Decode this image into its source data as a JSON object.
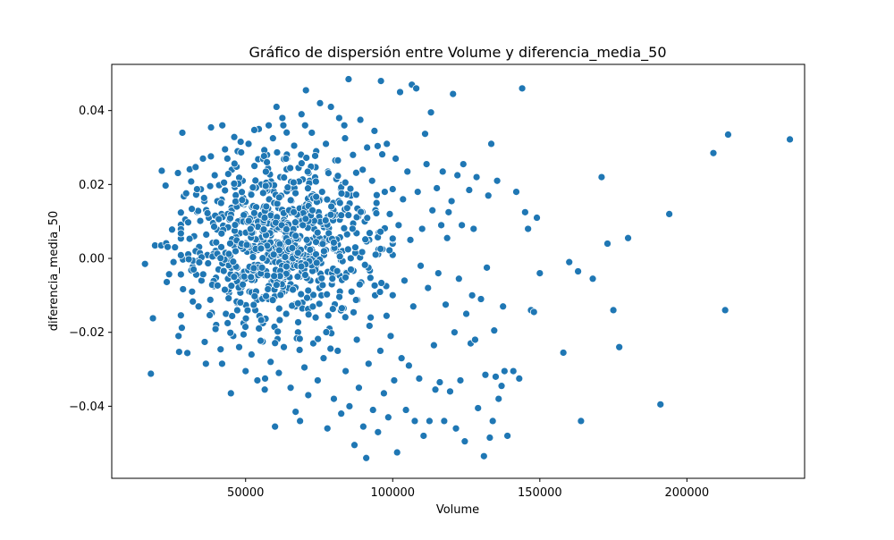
{
  "chart_data": {
    "type": "scatter",
    "title": "Gráfico de dispersión entre Volume y diferencia_media_50",
    "xlabel": "Volume",
    "ylabel": "diferencia_media_50",
    "xlim": [
      4500,
      240000
    ],
    "ylim": [
      -0.0595,
      0.0525
    ],
    "xticks": [
      50000,
      100000,
      150000,
      200000
    ],
    "xtick_labels": [
      "50000",
      "100000",
      "150000",
      "200000"
    ],
    "yticks": [
      -0.04,
      -0.02,
      0.0,
      0.02,
      0.04
    ],
    "ytick_labels": [
      "−0.04",
      "−0.02",
      "0.00",
      "0.02",
      "0.04"
    ],
    "grid": false,
    "legend": "none",
    "marker_color": "#1f77b4",
    "series": [
      {
        "points": [
          [
            15800,
            -0.0015
          ],
          [
            17800,
            -0.0312
          ],
          [
            18500,
            -0.0162
          ],
          [
            19200,
            0.0035
          ],
          [
            21300,
            0.0035
          ],
          [
            21500,
            0.0237
          ],
          [
            22800,
            0.0197
          ],
          [
            23000,
            0.0041
          ],
          [
            23200,
            -0.0064
          ],
          [
            23500,
            0.0031
          ],
          [
            24000,
            -0.0043
          ],
          [
            25000,
            0.0078
          ],
          [
            25500,
            -0.001
          ],
          [
            26000,
            0.003
          ],
          [
            27000,
            0.0231
          ],
          [
            27200,
            -0.021
          ],
          [
            27400,
            -0.0253
          ],
          [
            28000,
            0.0091
          ],
          [
            28500,
            0.034
          ],
          [
            28700,
            -0.0003
          ],
          [
            29000,
            0.0168
          ],
          [
            29500,
            0.0105
          ],
          [
            29800,
            0.0176
          ],
          [
            30200,
            -0.0256
          ],
          [
            30500,
            0.0011
          ],
          [
            31000,
            0.0241
          ],
          [
            31500,
            0.0208
          ],
          [
            31800,
            -0.009
          ],
          [
            32000,
            -0.0023
          ],
          [
            32500,
            0.006
          ],
          [
            33000,
            0.0247
          ],
          [
            33200,
            -0.0044
          ],
          [
            33500,
            0.0126
          ],
          [
            34000,
            -0.013
          ],
          [
            34200,
            0.0031
          ],
          [
            34800,
            0.0187
          ],
          [
            35000,
            -0.006
          ],
          [
            35500,
            0.027
          ],
          [
            36000,
            0.0155
          ],
          [
            36500,
            -0.0285
          ],
          [
            37000,
            0.0009
          ],
          [
            37500,
            0.011
          ],
          [
            38000,
            -0.0112
          ],
          [
            38200,
            0.0276
          ],
          [
            38800,
            0.0042
          ],
          [
            39200,
            -0.0075
          ],
          [
            39500,
            0.0225
          ],
          [
            40000,
            -0.018
          ],
          [
            40300,
            0.0078
          ],
          [
            40800,
            -0.003
          ],
          [
            41000,
            0.0198
          ],
          [
            41500,
            -0.0246
          ],
          [
            41800,
            0.012
          ],
          [
            42000,
            -0.0285
          ],
          [
            42500,
            0.0005
          ],
          [
            43000,
            0.0184
          ],
          [
            43300,
            -0.015
          ],
          [
            43800,
            0.027
          ],
          [
            44000,
            -0.0055
          ],
          [
            44500,
            0.0105
          ],
          [
            45000,
            -0.0365
          ],
          [
            45300,
            0.024
          ],
          [
            45800,
            -0.021
          ],
          [
            46000,
            0.0035
          ],
          [
            46500,
            0.015
          ],
          [
            47000,
            -0.012
          ],
          [
            47300,
            0.029
          ],
          [
            47800,
            -0.024
          ],
          [
            48000,
            0.0068
          ],
          [
            48500,
            -0.0045
          ],
          [
            49000,
            0.021
          ],
          [
            49300,
            -0.0175
          ],
          [
            49800,
            0.012
          ],
          [
            50000,
            -0.0305
          ],
          [
            50500,
            0.0018
          ],
          [
            51000,
            0.031
          ],
          [
            51300,
            -0.009
          ],
          [
            51800,
            0.0175
          ],
          [
            52000,
            -0.026
          ],
          [
            52500,
            0.006
          ],
          [
            53000,
            0.025
          ],
          [
            53300,
            -0.014
          ],
          [
            53800,
            0.0095
          ],
          [
            54000,
            -0.033
          ],
          [
            54500,
            0.035
          ],
          [
            55000,
            -0.002
          ],
          [
            55300,
            0.02
          ],
          [
            55800,
            -0.0225
          ],
          [
            56000,
            0.0135
          ],
          [
            56500,
            -0.0355
          ],
          [
            57000,
            0.004
          ],
          [
            57300,
            0.028
          ],
          [
            57800,
            -0.011
          ],
          [
            58000,
            0.016
          ],
          [
            58500,
            -0.028
          ],
          [
            59000,
            0.0075
          ],
          [
            59300,
            0.0325
          ],
          [
            59800,
            -0.0185
          ],
          [
            60000,
            -0.0455
          ],
          [
            60500,
            0.041
          ],
          [
            61000,
            0.001
          ],
          [
            61300,
            -0.031
          ],
          [
            61800,
            0.022
          ],
          [
            62000,
            -0.0065
          ],
          [
            62500,
            0.038
          ],
          [
            63000,
            -0.024
          ],
          [
            63300,
            0.0115
          ],
          [
            63800,
            -0.015
          ],
          [
            64000,
            0.027
          ],
          [
            64500,
            -0.008
          ],
          [
            65000,
            0.0055
          ],
          [
            65300,
            -0.035
          ],
          [
            65800,
            0.019
          ],
          [
            66000,
            -0.0025
          ],
          [
            66500,
            0.0305
          ],
          [
            67000,
            -0.0415
          ],
          [
            67300,
            0.009
          ],
          [
            67800,
            -0.02
          ],
          [
            68000,
            0.0245
          ],
          [
            68500,
            -0.044
          ],
          [
            69000,
            0.039
          ],
          [
            69300,
            -0.012
          ],
          [
            69800,
            0.014
          ],
          [
            70000,
            -0.0295
          ],
          [
            70500,
            0.0455
          ],
          [
            71000,
            0.003
          ],
          [
            71300,
            -0.037
          ],
          [
            71800,
            0.021
          ],
          [
            72000,
            -0.006
          ],
          [
            72500,
            0.034
          ],
          [
            73000,
            -0.023
          ],
          [
            73300,
            0.008
          ],
          [
            73800,
            -0.016
          ],
          [
            74000,
            0.029
          ],
          [
            74500,
            -0.033
          ],
          [
            75000,
            0.012
          ],
          [
            75300,
            0.042
          ],
          [
            75800,
            -0.01
          ],
          [
            76000,
            0.018
          ],
          [
            76500,
            -0.027
          ],
          [
            77000,
            0.0045
          ],
          [
            77300,
            0.031
          ],
          [
            77800,
            -0.046
          ],
          [
            78000,
            0.0235
          ],
          [
            78500,
            -0.019
          ],
          [
            79000,
            0.041
          ],
          [
            79300,
            -0.007
          ],
          [
            79800,
            0.015
          ],
          [
            80000,
            -0.038
          ],
          [
            80500,
            0.0265
          ],
          [
            81000,
            0.002
          ],
          [
            81300,
            -0.025
          ],
          [
            81800,
            0.038
          ],
          [
            82000,
            0.0105
          ],
          [
            82500,
            -0.042
          ],
          [
            83000,
            0.02
          ],
          [
            83300,
            -0.0135
          ],
          [
            83800,
            0.0325
          ],
          [
            84000,
            -0.0305
          ],
          [
            84500,
            0.0065
          ],
          [
            85000,
            0.0485
          ],
          [
            85300,
            -0.04
          ],
          [
            85800,
            0.017
          ],
          [
            86000,
            -0.009
          ],
          [
            86500,
            0.028
          ],
          [
            87000,
            -0.0505
          ],
          [
            87300,
            0.0015
          ],
          [
            87800,
            -0.022
          ],
          [
            88000,
            0.0135
          ],
          [
            88500,
            -0.035
          ],
          [
            89000,
            0.0375
          ],
          [
            89300,
            -0.0065
          ],
          [
            89800,
            0.024
          ],
          [
            90000,
            -0.0455
          ],
          [
            90500,
            0.01
          ],
          [
            91000,
            -0.054
          ],
          [
            91300,
            0.03
          ],
          [
            91800,
            -0.0285
          ],
          [
            92000,
            0.005
          ],
          [
            92500,
            -0.016
          ],
          [
            93000,
            0.021
          ],
          [
            93300,
            -0.041
          ],
          [
            93800,
            0.0345
          ],
          [
            94000,
            -0.01
          ],
          [
            94500,
            0.015
          ],
          [
            95000,
            -0.047
          ],
          [
            95300,
            0.007
          ],
          [
            95800,
            -0.025
          ],
          [
            96000,
            0.048
          ],
          [
            96500,
            0.0025
          ],
          [
            97000,
            -0.0365
          ],
          [
            97300,
            0.018
          ],
          [
            97800,
            -0.0075
          ],
          [
            98000,
            0.031
          ],
          [
            98500,
            -0.043
          ],
          [
            99000,
            0.012
          ],
          [
            99300,
            -0.021
          ],
          [
            100000,
            0.004
          ],
          [
            100500,
            -0.033
          ],
          [
            101000,
            0.027
          ],
          [
            101500,
            -0.0525
          ],
          [
            102000,
            0.009
          ],
          [
            102500,
            0.045
          ],
          [
            103000,
            -0.027
          ],
          [
            103500,
            0.016
          ],
          [
            104000,
            -0.006
          ],
          [
            104500,
            -0.041
          ],
          [
            105000,
            0.0235
          ],
          [
            105500,
            -0.029
          ],
          [
            106000,
            0.005
          ],
          [
            106500,
            0.047
          ],
          [
            107000,
            -0.013
          ],
          [
            107500,
            -0.044
          ],
          [
            108000,
            0.046
          ],
          [
            108500,
            0.018
          ],
          [
            109000,
            -0.0325
          ],
          [
            109500,
            -0.002
          ],
          [
            110000,
            0.008
          ],
          [
            110500,
            -0.048
          ],
          [
            111000,
            0.0337
          ],
          [
            111500,
            0.0255
          ],
          [
            112000,
            -0.008
          ],
          [
            112500,
            -0.044
          ],
          [
            113000,
            0.0395
          ],
          [
            113500,
            0.013
          ],
          [
            114000,
            -0.0235
          ],
          [
            114500,
            -0.0355
          ],
          [
            115000,
            0.019
          ],
          [
            115500,
            -0.004
          ],
          [
            116000,
            -0.0335
          ],
          [
            116500,
            0.009
          ],
          [
            117000,
            0.0235
          ],
          [
            117500,
            -0.044
          ],
          [
            118000,
            -0.0125
          ],
          [
            118500,
            0.0055
          ],
          [
            119000,
            0.0125
          ],
          [
            119500,
            -0.036
          ],
          [
            120000,
            0.0155
          ],
          [
            120500,
            0.0445
          ],
          [
            121000,
            -0.02
          ],
          [
            121500,
            -0.046
          ],
          [
            122000,
            0.0225
          ],
          [
            122500,
            -0.0055
          ],
          [
            123000,
            -0.033
          ],
          [
            123500,
            0.009
          ],
          [
            124000,
            0.0255
          ],
          [
            124500,
            -0.0495
          ],
          [
            125000,
            -0.015
          ],
          [
            126000,
            0.0185
          ],
          [
            126500,
            -0.023
          ],
          [
            127000,
            -0.01
          ],
          [
            127500,
            0.008
          ],
          [
            128000,
            -0.022
          ],
          [
            128500,
            0.022
          ],
          [
            129000,
            -0.0405
          ],
          [
            130000,
            -0.011
          ],
          [
            131000,
            -0.0535
          ],
          [
            131500,
            -0.0315
          ],
          [
            132000,
            -0.0025
          ],
          [
            132500,
            0.017
          ],
          [
            133000,
            -0.0485
          ],
          [
            133500,
            0.031
          ],
          [
            134000,
            -0.044
          ],
          [
            134500,
            -0.0195
          ],
          [
            135000,
            -0.032
          ],
          [
            135500,
            0.021
          ],
          [
            136000,
            -0.038
          ],
          [
            137000,
            -0.0345
          ],
          [
            137500,
            -0.013
          ],
          [
            138000,
            -0.0305
          ],
          [
            139000,
            -0.048
          ],
          [
            141000,
            -0.0305
          ],
          [
            142000,
            0.018
          ],
          [
            143000,
            -0.0325
          ],
          [
            144000,
            0.046
          ],
          [
            145000,
            0.0125
          ],
          [
            146000,
            0.008
          ],
          [
            147000,
            -0.014
          ],
          [
            148000,
            -0.0145
          ],
          [
            149000,
            0.011
          ],
          [
            150000,
            -0.004
          ],
          [
            158000,
            -0.0255
          ],
          [
            160000,
            -0.001
          ],
          [
            163000,
            -0.0035
          ],
          [
            164000,
            -0.044
          ],
          [
            168000,
            -0.0055
          ],
          [
            171000,
            0.022
          ],
          [
            173000,
            0.004
          ],
          [
            175000,
            -0.014
          ],
          [
            177000,
            -0.024
          ],
          [
            180000,
            0.0055
          ],
          [
            191000,
            -0.0395
          ],
          [
            194000,
            0.012
          ],
          [
            209000,
            0.0285
          ],
          [
            213000,
            -0.014
          ],
          [
            214000,
            0.0335
          ],
          [
            235000,
            0.0322
          ]
        ]
      }
    ],
    "dense_cluster": {
      "center_x": 62000,
      "sd_x": 16000,
      "center_y": 0.004,
      "sd_y": 0.011,
      "n": 700,
      "seed": 50
    }
  }
}
